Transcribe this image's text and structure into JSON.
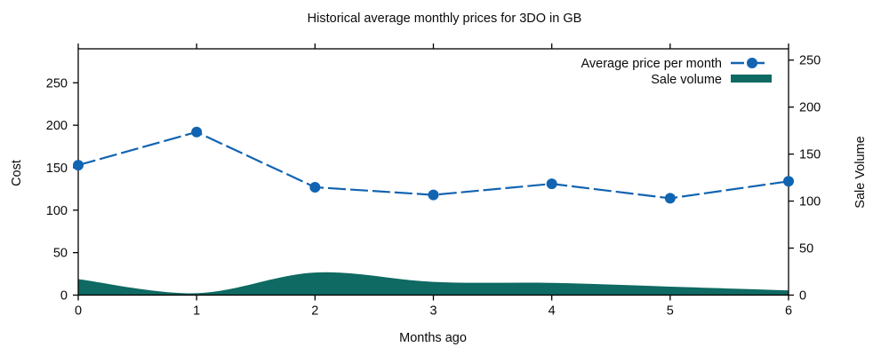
{
  "title": "Historical average monthly prices for 3DO in GB",
  "chart_data": {
    "type": "line",
    "title": "Historical average monthly prices for 3DO in GB",
    "xlabel": "Months ago",
    "ylabel": "Cost",
    "y2label": "Sale Volume",
    "x": [
      0,
      1,
      2,
      3,
      4,
      5,
      6
    ],
    "series": [
      {
        "name": "Average price per month",
        "type": "line",
        "axis": "left",
        "style": "dashed-with-circle-markers",
        "color": "#1164b1",
        "values": [
          153,
          192,
          127,
          118,
          131,
          114,
          134
        ]
      },
      {
        "name": "Sale volume",
        "type": "area",
        "axis": "right",
        "style": "filled",
        "color": "#0e6a62",
        "values": [
          17,
          2,
          24,
          14,
          13,
          9,
          5
        ]
      }
    ],
    "xlim": [
      0,
      6
    ],
    "ylim": [
      0,
      290
    ],
    "y2lim": [
      0,
      262
    ],
    "xticks": [
      "0",
      "1",
      "2",
      "3",
      "4",
      "5",
      "6"
    ],
    "yticks": [
      "0",
      "50",
      "100",
      "150",
      "200",
      "250"
    ],
    "y2ticks": [
      "0",
      "50",
      "100",
      "150",
      "200",
      "250"
    ],
    "grid": false,
    "tick_direction": "out",
    "legend_position": "top-right-inside",
    "border_color": "#000000",
    "text_color": "#0a0a0a"
  }
}
